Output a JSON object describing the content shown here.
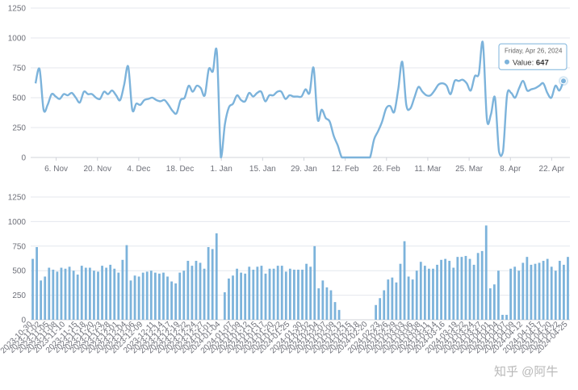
{
  "chart_data": [
    {
      "type": "line",
      "smooth": true,
      "y_ticks": [
        "0",
        "250",
        "500",
        "750",
        "1000",
        "1250"
      ],
      "ylim": [
        0,
        1250
      ],
      "grid": true,
      "x_ticks": [
        "6. Nov",
        "20. Nov",
        "4. Dec",
        "18. Dec",
        "1. Jan",
        "15. Jan",
        "29. Jan",
        "12. Feb",
        "26. Feb",
        "11. Mar",
        "25. Mar",
        "8. Apr",
        "22. Apr"
      ],
      "color": "#7cb3db",
      "x_start": "2023-10-30",
      "x_end": "2024-04-26",
      "tooltip": {
        "date": "Friday, Apr 26, 2024",
        "label": "Value: ",
        "value": "647"
      }
    },
    {
      "type": "bar",
      "y_ticks": [
        "0",
        "250",
        "500",
        "750",
        "1000",
        "1250"
      ],
      "ylim": [
        0,
        1250
      ],
      "grid": true,
      "x_tick_labels": [
        "2023-10-30",
        "2023-11-02",
        "2023-11-05",
        "2023-11-08",
        "2023-11-10",
        "2023-11-15",
        "2023-11-18",
        "2023-11-20",
        "2023-11-23",
        "2023-11-28",
        "2023-12-01",
        "2023-12-04",
        "2023-12-06",
        "2023-12-09",
        "2023-12-11",
        "2023-12-14",
        "2023-12-17",
        "2023-12-19",
        "2023-12-22",
        "2023-12-24",
        "2023-12-27",
        "2024-01-01",
        "2024-01-04",
        "2024-01-07",
        "2024-01-09",
        "2024-01-12",
        "2024-01-15",
        "2024-01-17",
        "2024-01-20",
        "2024-01-22",
        "2024-01-25",
        "2024-01-30",
        "2024-02-02",
        "2024-02-04",
        "2024-02-07",
        "2024-02-09",
        "2024-02-12",
        "2024-02-15",
        "2024-02-18",
        "2024-02-20",
        "2024-02-23",
        "2024-02-26",
        "2024-02-29",
        "2024-03-03",
        "2024-03-06",
        "2024-03-08",
        "2024-03-11",
        "2024-03-14",
        "2024-03-16",
        "2024-03-19",
        "2024-03-22",
        "2024-03-24",
        "2024-03-27",
        "2024-04-01",
        "2024-04-04",
        "2024-04-07",
        "2024-04-09",
        "2024-04-12",
        "2024-04-15",
        "2024-04-17",
        "2024-04-20",
        "2024-04-22",
        "2024-04-25"
      ],
      "values": [
        620,
        740,
        400,
        440,
        530,
        510,
        490,
        530,
        520,
        540,
        500,
        460,
        550,
        530,
        530,
        500,
        490,
        550,
        530,
        560,
        520,
        480,
        610,
        760,
        400,
        450,
        440,
        480,
        490,
        500,
        480,
        470,
        480,
        440,
        390,
        370,
        480,
        500,
        600,
        550,
        600,
        580,
        520,
        740,
        720,
        880,
        0,
        280,
        420,
        450,
        520,
        480,
        470,
        540,
        510,
        540,
        550,
        470,
        520,
        520,
        550,
        550,
        490,
        520,
        510,
        510,
        510,
        570,
        540,
        750,
        320,
        400,
        330,
        300,
        180,
        100,
        0,
        0,
        0,
        0,
        0,
        0,
        0,
        0,
        150,
        220,
        300,
        410,
        430,
        380,
        570,
        800,
        440,
        410,
        500,
        590,
        550,
        520,
        520,
        560,
        610,
        620,
        600,
        530,
        640,
        640,
        650,
        620,
        560,
        680,
        700,
        960,
        320,
        360,
        500,
        50,
        50,
        520,
        540,
        500,
        580,
        640,
        560,
        570,
        580,
        600,
        620,
        540,
        500,
        600,
        560,
        640
      ],
      "color": "#7cb3db"
    }
  ],
  "watermark": "知乎 @阿牛"
}
